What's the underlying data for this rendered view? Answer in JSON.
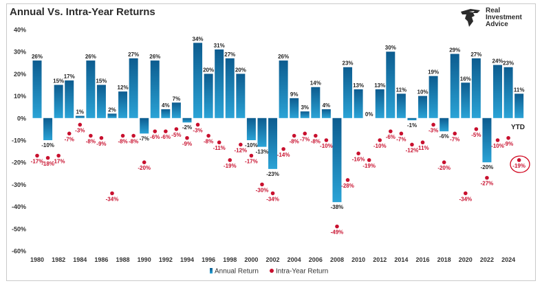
{
  "brand": {
    "line1": "Real",
    "line2": "Investment",
    "line3": "Advice"
  },
  "chart_data": {
    "type": "bar",
    "title": "Annual Vs. Intra-Year Returns",
    "ylim": [
      -60,
      40
    ],
    "yticks": [
      40,
      30,
      20,
      10,
      0,
      -10,
      -20,
      -30,
      -40,
      -50,
      -60
    ],
    "ytick_labels": [
      "40%",
      "30%",
      "20%",
      "10%",
      "0%",
      "-10%",
      "-20%",
      "-30%",
      "-40%",
      "-50%",
      "-60%"
    ],
    "x": [
      1980,
      1981,
      1982,
      1983,
      1984,
      1985,
      1986,
      1987,
      1988,
      1989,
      1990,
      1991,
      1992,
      1993,
      1994,
      1995,
      1996,
      1997,
      1998,
      1999,
      2000,
      2001,
      2002,
      2003,
      2004,
      2005,
      2006,
      2007,
      2008,
      2009,
      2010,
      2011,
      2012,
      2013,
      2014,
      2015,
      2016,
      2017,
      2018,
      2019,
      2020,
      2021,
      2022,
      2023,
      2024,
      2025
    ],
    "xtick_labels": [
      "1980",
      "1982",
      "1984",
      "1986",
      "1988",
      "1990",
      "1992",
      "1994",
      "1996",
      "1998",
      "2000",
      "2002",
      "2004",
      "2006",
      "2008",
      "2010",
      "2012",
      "2014",
      "2016",
      "2018",
      "2020",
      "2022",
      "2024"
    ],
    "series": [
      {
        "name": "Annual Return",
        "kind": "bar",
        "color": "#1a7db3",
        "values": [
          26,
          -10,
          15,
          17,
          1,
          26,
          15,
          2,
          12,
          27,
          -7,
          26,
          4,
          7,
          -2,
          34,
          20,
          31,
          27,
          20,
          -10,
          -13,
          -23,
          26,
          9,
          3,
          14,
          4,
          -38,
          23,
          13,
          0,
          13,
          30,
          11,
          -1,
          10,
          19,
          -6,
          29,
          16,
          27,
          -20,
          24,
          23,
          11
        ],
        "labels": [
          "26%",
          "-10%",
          "15%",
          "17%",
          "1%",
          "26%",
          "15%",
          "2%",
          "12%",
          "27%",
          "-7%",
          "26%",
          "4%",
          "7%",
          "-2%",
          "34%",
          "20%",
          "31%",
          "27%",
          "20%",
          "-10%",
          "-13%",
          "-23%",
          "26%",
          "9%",
          "3%",
          "14%",
          "4%",
          "-38%",
          "23%",
          "13%",
          "0%",
          "13%",
          "30%",
          "11%",
          "-1%",
          "10%",
          "19%",
          "-6%",
          "29%",
          "16%",
          "27%",
          "-20%",
          "24%",
          "23%",
          "11%"
        ]
      },
      {
        "name": "Intra-Year Return",
        "kind": "scatter",
        "color": "#c8102e",
        "values": [
          -17,
          -18,
          -17,
          -7,
          -3,
          -8,
          -9,
          -34,
          -8,
          -8,
          -20,
          -6,
          -6,
          -5,
          -9,
          -3,
          -8,
          -11,
          -19,
          -12,
          -17,
          -30,
          -34,
          -14,
          -8,
          -7,
          -8,
          -10,
          -49,
          -28,
          -16,
          -19,
          -10,
          -6,
          -7,
          -12,
          -11,
          -3,
          -20,
          -7,
          -34,
          -5,
          -27,
          -10,
          -9,
          -19
        ],
        "labels": [
          "-17%",
          "-18%",
          "-17%",
          "-7%",
          "-3%",
          "-8%",
          "-9%",
          "-34%",
          "-8%",
          "-8%",
          "-20%",
          "-6%",
          "-6%",
          "-5%",
          "-9%",
          "-3%",
          "-8%",
          "-11%",
          "-19%",
          "-12%",
          "-17%",
          "-30%",
          "-34%",
          "-14%",
          "-8%",
          "-7%",
          "-8%",
          "-10%",
          "-49%",
          "-28%",
          "-16%",
          "-19%",
          "-10%",
          "-6%",
          "-7%",
          "-12%",
          "-11%",
          "-3%",
          "-20%",
          "-7%",
          "-34%",
          "-5%",
          "-27%",
          "-10%",
          "-9%",
          "-19%"
        ]
      }
    ],
    "annotation": "YTD",
    "legend_position": "bottom"
  },
  "colors": {
    "bar_top": "#0d5c8f",
    "bar_bottom": "#2aa3d6",
    "dot": "#c8102e",
    "dot_label": "#c8102e",
    "bar_label": "#222222",
    "axis_text": "#333333"
  }
}
